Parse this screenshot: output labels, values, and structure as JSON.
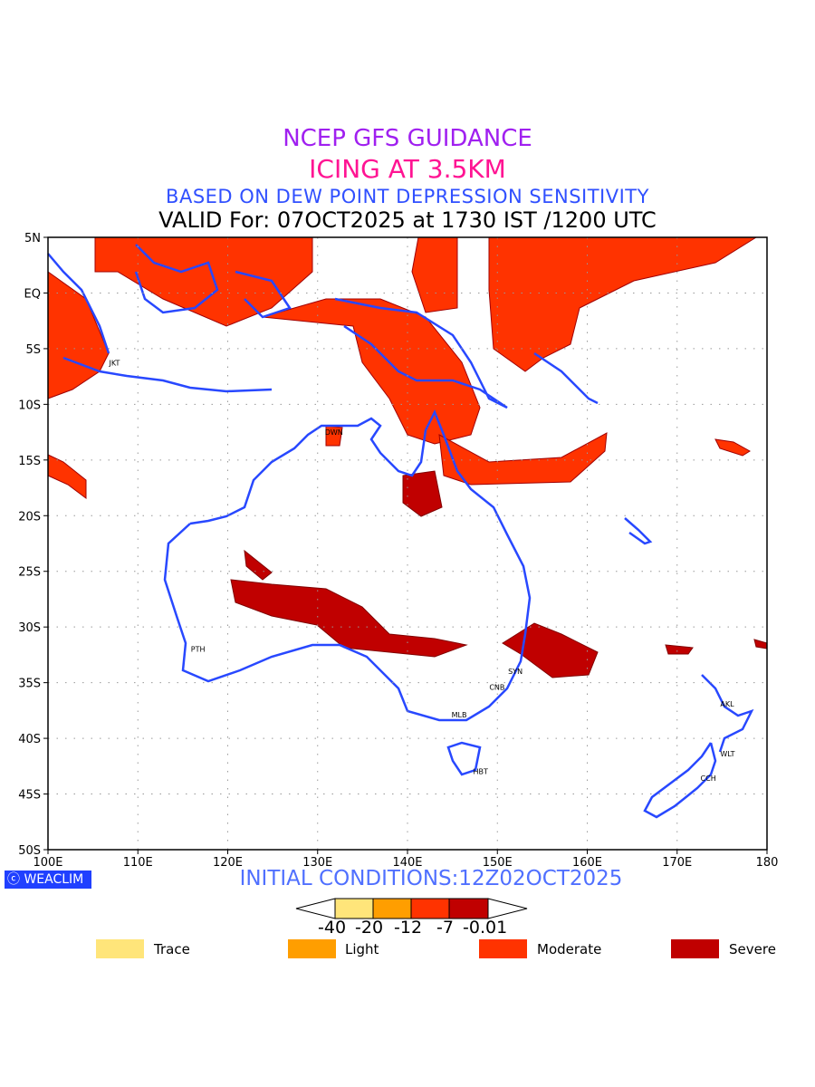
{
  "titles": {
    "line1": "NCEP GFS GUIDANCE",
    "line2": "ICING AT 3.5KM",
    "line3": "BASED ON DEW POINT DEPRESSION SENSITIVITY",
    "line4": "VALID For: 07OCT2025 at 1730 IST /1200 UTC"
  },
  "map": {
    "lat_ticks": [
      {
        "v": 5,
        "label": "5N"
      },
      {
        "v": 0,
        "label": "EQ"
      },
      {
        "v": -5,
        "label": "5S"
      },
      {
        "v": -10,
        "label": "10S"
      },
      {
        "v": -15,
        "label": "15S"
      },
      {
        "v": -20,
        "label": "20S"
      },
      {
        "v": -25,
        "label": "25S"
      },
      {
        "v": -30,
        "label": "30S"
      },
      {
        "v": -35,
        "label": "35S"
      },
      {
        "v": -40,
        "label": "40S"
      },
      {
        "v": -45,
        "label": "45S"
      },
      {
        "v": -50,
        "label": "50S"
      }
    ],
    "lon_ticks": [
      {
        "v": 100,
        "label": "100E"
      },
      {
        "v": 110,
        "label": "110E"
      },
      {
        "v": 120,
        "label": "120E"
      },
      {
        "v": 130,
        "label": "130E"
      },
      {
        "v": 140,
        "label": "140E"
      },
      {
        "v": 150,
        "label": "150E"
      },
      {
        "v": 160,
        "label": "160E"
      },
      {
        "v": 170,
        "label": "170E"
      },
      {
        "v": 180,
        "label": "180"
      }
    ],
    "extent": {
      "lon": [
        100,
        180
      ],
      "lat": [
        -50,
        5
      ]
    },
    "cities": [
      {
        "name": "JKT",
        "lon": 106.8,
        "lat": -6.2
      },
      {
        "name": "DWN",
        "lon": 130.8,
        "lat": -12.4
      },
      {
        "name": "PTH",
        "lon": 115.9,
        "lat": -31.9
      },
      {
        "name": "SYN",
        "lon": 151.2,
        "lat": -33.9
      },
      {
        "name": "CNB",
        "lon": 149.1,
        "lat": -35.3
      },
      {
        "name": "MLB",
        "lon": 144.9,
        "lat": -37.8
      },
      {
        "name": "HBT",
        "lon": 147.3,
        "lat": -42.9
      },
      {
        "name": "AKL",
        "lon": 174.8,
        "lat": -36.8
      },
      {
        "name": "WLT",
        "lon": 174.8,
        "lat": -41.3
      },
      {
        "name": "CCH",
        "lon": 172.6,
        "lat": -43.5
      }
    ],
    "coast_color": "#2848ff"
  },
  "footer": {
    "logo": "ⓒ WEACLIM",
    "initial": "INITIAL CONDITIONS:12Z02OCT2025"
  },
  "colorbar": {
    "labels": [
      "-40",
      "-20",
      "-12",
      "-7",
      "-0.01"
    ],
    "colors": [
      "#ffe57a",
      "#ff9e00",
      "#ff3300",
      "#c00000"
    ]
  },
  "legend": [
    {
      "label": "Trace",
      "color": "#ffe57a"
    },
    {
      "label": "Light",
      "color": "#ff9e00"
    },
    {
      "label": "Moderate",
      "color": "#ff3300"
    },
    {
      "label": "Severe",
      "color": "#c00000"
    }
  ]
}
